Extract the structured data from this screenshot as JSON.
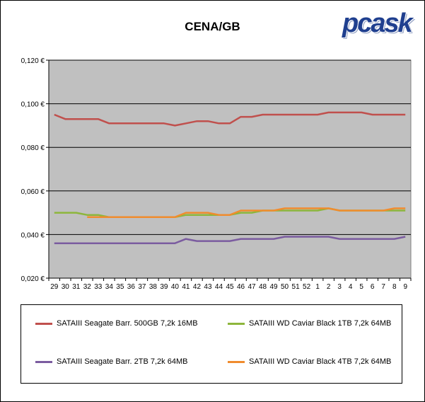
{
  "chart_data": {
    "type": "line",
    "title": "CENA/GB",
    "logo_text": "pcask",
    "xlabel": "",
    "ylabel": "",
    "ylim": [
      0.02,
      0.12
    ],
    "yticks": [
      0.02,
      0.04,
      0.06,
      0.08,
      0.1,
      0.12
    ],
    "ytick_labels": [
      "0,020 €",
      "0,040 €",
      "0,060 €",
      "0,080 €",
      "0,100 €",
      "0,120 €"
    ],
    "grid": "horizontal",
    "legend": "bottom",
    "categories": [
      "29",
      "30",
      "31",
      "32",
      "33",
      "34",
      "35",
      "36",
      "37",
      "38",
      "39",
      "40",
      "41",
      "42",
      "43",
      "44",
      "45",
      "46",
      "47",
      "48",
      "49",
      "50",
      "51",
      "52",
      "1",
      "2",
      "3",
      "4",
      "5",
      "6",
      "7",
      "8",
      "9"
    ],
    "series": [
      {
        "name": "SATAIII Seagate Barr. 500GB 7,2k 16MB",
        "color": "#c0504d",
        "values": [
          0.095,
          0.093,
          0.093,
          0.093,
          0.093,
          0.091,
          0.091,
          0.091,
          0.091,
          0.091,
          0.091,
          0.09,
          0.091,
          0.092,
          0.092,
          0.091,
          0.091,
          0.094,
          0.094,
          0.095,
          0.095,
          0.095,
          0.095,
          0.095,
          0.095,
          0.096,
          0.096,
          0.096,
          0.096,
          0.095,
          0.095,
          0.095,
          0.095
        ]
      },
      {
        "name": "SATAIII WD Caviar Black 1TB 7,2k 64MB",
        "color": "#8db63c",
        "values": [
          0.05,
          0.05,
          0.05,
          0.049,
          0.049,
          0.048,
          0.048,
          0.048,
          0.048,
          0.048,
          0.048,
          0.048,
          0.049,
          0.049,
          0.049,
          0.049,
          0.049,
          0.05,
          0.05,
          0.051,
          0.051,
          0.051,
          0.051,
          0.051,
          0.051,
          0.052,
          0.051,
          0.051,
          0.051,
          0.051,
          0.051,
          0.051,
          0.051
        ]
      },
      {
        "name": "SATAIII Seagate Barr. 2TB 7,2k 64MB",
        "color": "#7b5ca0",
        "values": [
          0.036,
          0.036,
          0.036,
          0.036,
          0.036,
          0.036,
          0.036,
          0.036,
          0.036,
          0.036,
          0.036,
          0.036,
          0.038,
          0.037,
          0.037,
          0.037,
          0.037,
          0.038,
          0.038,
          0.038,
          0.038,
          0.039,
          0.039,
          0.039,
          0.039,
          0.039,
          0.038,
          0.038,
          0.038,
          0.038,
          0.038,
          0.038,
          0.039
        ]
      },
      {
        "name": "SATAIII WD Caviar Black 4TB 7,2k 64MB",
        "color": "#f08c2e",
        "values": [
          null,
          null,
          null,
          0.048,
          0.048,
          0.048,
          0.048,
          0.048,
          0.048,
          0.048,
          0.048,
          0.048,
          0.05,
          0.05,
          0.05,
          0.049,
          0.049,
          0.051,
          0.051,
          0.051,
          0.051,
          0.052,
          0.052,
          0.052,
          0.052,
          0.052,
          0.051,
          0.051,
          0.051,
          0.051,
          0.051,
          0.052,
          0.052
        ]
      }
    ]
  }
}
